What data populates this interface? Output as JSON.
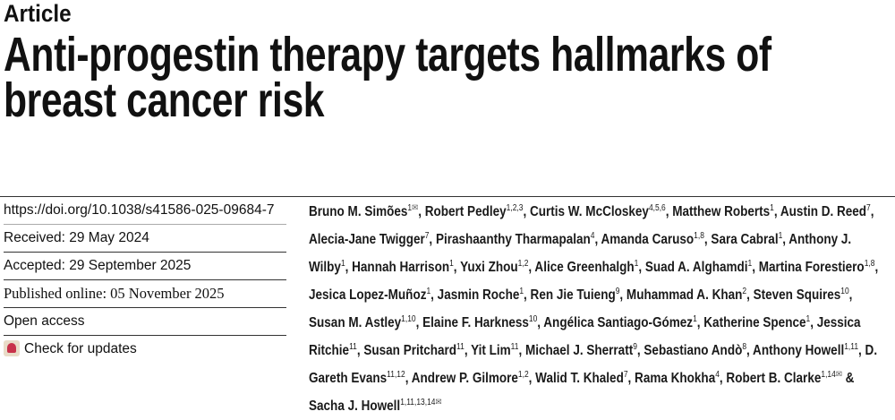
{
  "article_type": "Article",
  "title": [
    "Anti-progestin therapy targets hallmarks of",
    "breast cancer risk"
  ],
  "meta": {
    "doi": "https://doi.org/10.1038/s41586-025-09684-7",
    "received": "Received: 29 May 2024",
    "accepted": "Accepted: 29 September 2025",
    "published": "Published online: 05 November 2025",
    "access": "Open access",
    "check_updates": "Check for updates"
  },
  "authors": [
    {
      "name": "Bruno M. Simões",
      "sup": "1",
      "email": true
    },
    {
      "name": "Robert Pedley",
      "sup": "1,2,3"
    },
    {
      "name": "Curtis W. McCloskey",
      "sup": "4,5,6"
    },
    {
      "name": "Matthew Roberts",
      "sup": "1"
    },
    {
      "name": "Austin D. Reed",
      "sup": "7"
    },
    {
      "name": "Alecia-Jane Twigger",
      "sup": "7"
    },
    {
      "name": "Pirashaanthy Tharmapalan",
      "sup": "4"
    },
    {
      "name": "Amanda Caruso",
      "sup": "1,8"
    },
    {
      "name": "Sara Cabral",
      "sup": "1"
    },
    {
      "name": "Anthony J. Wilby",
      "sup": "1"
    },
    {
      "name": "Hannah Harrison",
      "sup": "1"
    },
    {
      "name": "Yuxi Zhou",
      "sup": "1,2"
    },
    {
      "name": "Alice Greenhalgh",
      "sup": "1"
    },
    {
      "name": "Suad A. Alghamdi",
      "sup": "1"
    },
    {
      "name": "Martina Forestiero",
      "sup": "1,8"
    },
    {
      "name": "Jesica Lopez-Muñoz",
      "sup": "1"
    },
    {
      "name": "Jasmin Roche",
      "sup": "1"
    },
    {
      "name": "Ren Jie Tuieng",
      "sup": "9"
    },
    {
      "name": "Muhammad A. Khan",
      "sup": "2"
    },
    {
      "name": "Steven Squires",
      "sup": "10"
    },
    {
      "name": "Susan M. Astley",
      "sup": "1,10"
    },
    {
      "name": "Elaine F. Harkness",
      "sup": "10"
    },
    {
      "name": "Angélica Santiago-Gómez",
      "sup": "1"
    },
    {
      "name": "Katherine Spence",
      "sup": "1"
    },
    {
      "name": "Jessica Ritchie",
      "sup": "11"
    },
    {
      "name": "Susan Pritchard",
      "sup": "11"
    },
    {
      "name": "Yit Lim",
      "sup": "11"
    },
    {
      "name": "Michael J. Sherratt",
      "sup": "9"
    },
    {
      "name": "Sebastiano Andò",
      "sup": "8"
    },
    {
      "name": "Anthony Howell",
      "sup": "1,11"
    },
    {
      "name": "D. Gareth Evans",
      "sup": "11,12"
    },
    {
      "name": "Andrew P. Gilmore",
      "sup": "1,2"
    },
    {
      "name": "Walid T. Khaled",
      "sup": "7"
    },
    {
      "name": "Rama Khokha",
      "sup": "4"
    },
    {
      "name": "Robert B. Clarke",
      "sup": "1,14",
      "email": true
    },
    {
      "name": "Sacha J. Howell",
      "sup": "1,11,13,14",
      "email": true
    }
  ],
  "email_icon": "envelope-icon"
}
